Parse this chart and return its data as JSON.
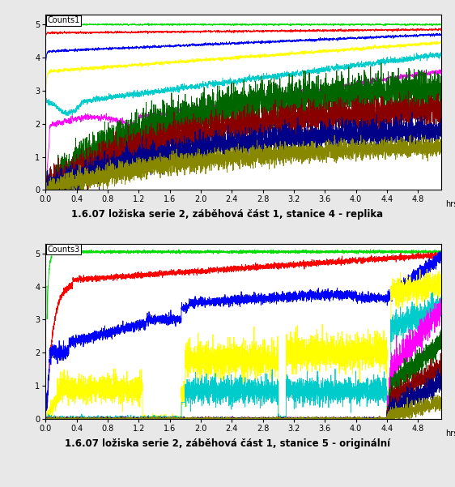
{
  "fig_width": 5.62,
  "fig_height": 6.01,
  "dpi": 100,
  "bg_color": "#e8e8e8",
  "plot_bg_color": "#ffffff",
  "subplot1": {
    "ylabel": "Counts1",
    "title": "1.6.07 ložiska serie 2, záběhová část 1, stanice 4 - replika",
    "ylim": [
      0,
      5.3
    ],
    "xlim": [
      0,
      5.1
    ],
    "xticks": [
      0,
      0.4,
      0.8,
      1.2,
      1.6,
      2.0,
      2.4,
      2.8,
      3.2,
      3.6,
      4.0,
      4.4,
      4.8
    ],
    "yticks": [
      0,
      1,
      2,
      3,
      4,
      5
    ],
    "colors": [
      "#00dd00",
      "#ff0000",
      "#0000ff",
      "#ffff00",
      "#00cccc",
      "#ff00ff",
      "#006600",
      "#880000",
      "#000088",
      "#888800"
    ]
  },
  "subplot2": {
    "ylabel": "Counts3",
    "title": "1.6.07 ložiska serie 2, záběhová část 1, stanice 5 - originální",
    "ylim": [
      0,
      5.3
    ],
    "xlim": [
      0,
      5.1
    ],
    "xticks": [
      0,
      0.4,
      0.8,
      1.2,
      1.6,
      2.0,
      2.4,
      2.8,
      3.2,
      3.6,
      4.0,
      4.4,
      4.8
    ],
    "yticks": [
      0,
      1,
      2,
      3,
      4,
      5
    ],
    "colors": [
      "#00dd00",
      "#ff0000",
      "#0000ff",
      "#ffff00",
      "#00cccc",
      "#ff00ff",
      "#006600",
      "#880000",
      "#000088",
      "#888800"
    ]
  }
}
